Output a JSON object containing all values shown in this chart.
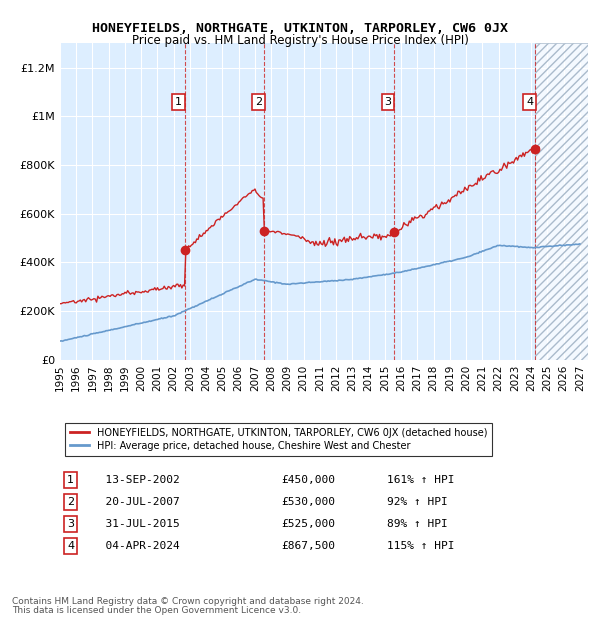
{
  "title": "HONEYFIELDS, NORTHGATE, UTKINTON, TARPORLEY, CW6 0JX",
  "subtitle": "Price paid vs. HM Land Registry's House Price Index (HPI)",
  "legend_line1": "HONEYFIELDS, NORTHGATE, UTKINTON, TARPORLEY, CW6 0JX (detached house)",
  "legend_line2": "HPI: Average price, detached house, Cheshire West and Chester",
  "footer1": "Contains HM Land Registry data © Crown copyright and database right 2024.",
  "footer2": "This data is licensed under the Open Government Licence v3.0.",
  "ylim": [
    0,
    1300000
  ],
  "xlim_start": 1995.0,
  "xlim_end": 2027.5,
  "yticks": [
    0,
    200000,
    400000,
    600000,
    800000,
    1000000,
    1200000
  ],
  "ytick_labels": [
    "£0",
    "£200K",
    "£400K",
    "£600K",
    "£800K",
    "£1M",
    "£1.2M"
  ],
  "xticks": [
    1995,
    1996,
    1997,
    1998,
    1999,
    2000,
    2001,
    2002,
    2003,
    2004,
    2005,
    2006,
    2007,
    2008,
    2009,
    2010,
    2011,
    2012,
    2013,
    2014,
    2015,
    2016,
    2017,
    2018,
    2019,
    2020,
    2021,
    2022,
    2023,
    2024,
    2025,
    2026,
    2027
  ],
  "sale_dates": [
    2002.707,
    2007.548,
    2015.578,
    2024.253
  ],
  "sale_prices": [
    450000,
    530000,
    525000,
    867500
  ],
  "sale_labels": [
    "1",
    "2",
    "3",
    "4"
  ],
  "sale_label_dates": [
    2002.3,
    2007.2,
    2015.2,
    2023.9
  ],
  "table_rows": [
    [
      "1",
      "13-SEP-2002",
      "£450,000",
      "161% ↑ HPI"
    ],
    [
      "2",
      "20-JUL-2007",
      "£530,000",
      "92% ↑ HPI"
    ],
    [
      "3",
      "31-JUL-2015",
      "£525,000",
      "89% ↑ HPI"
    ],
    [
      "4",
      "04-APR-2024",
      "£867,500",
      "115% ↑ HPI"
    ]
  ],
  "hpi_color": "#6699cc",
  "price_color": "#cc2222",
  "bg_color": "#ddeeff",
  "hatch_color": "#aabbcc",
  "grid_color": "#ffffff",
  "future_start": 2024.253
}
